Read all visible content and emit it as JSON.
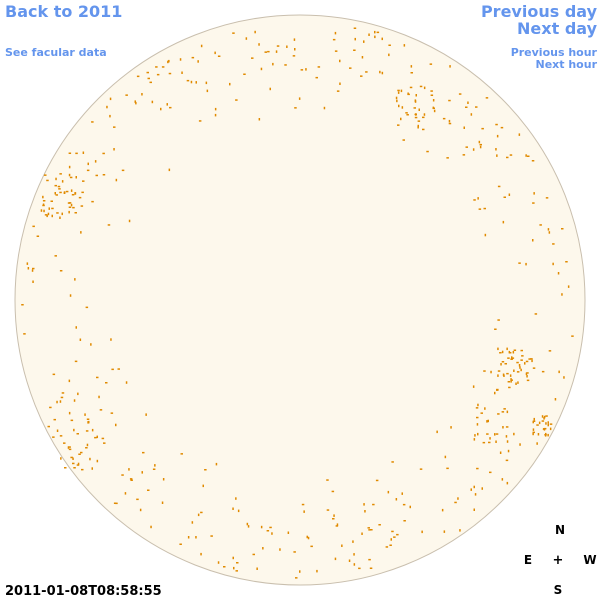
{
  "header": {
    "back_link": "Back to 2011",
    "facular_link": "See facular data",
    "previous_day": "Previous day",
    "next_day": "Next day",
    "previous_hour": "Previous hour",
    "next_hour": "Next hour"
  },
  "timestamp": "2011-01-08T08:58:55",
  "compass": {
    "north": "N",
    "east": "E",
    "center": "+",
    "west": "W",
    "south": "S"
  }
}
